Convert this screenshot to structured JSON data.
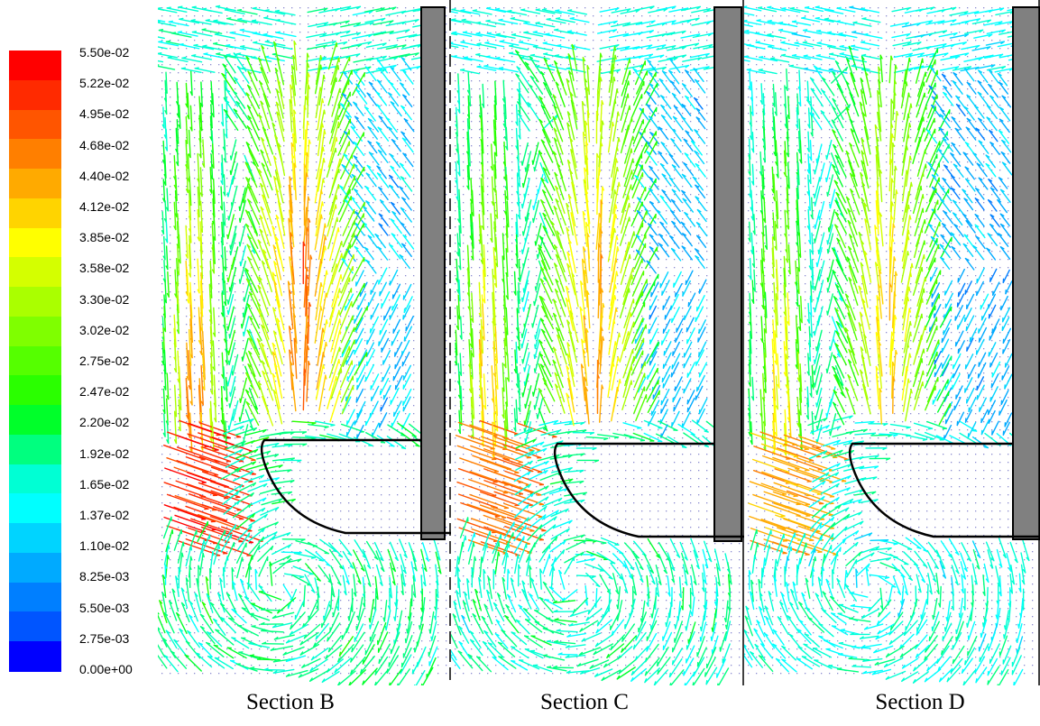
{
  "colorbar": {
    "labels": [
      "5.50e-02",
      "5.22e-02",
      "4.95e-02",
      "4.68e-02",
      "4.40e-02",
      "4.12e-02",
      "3.85e-02",
      "3.58e-02",
      "3.30e-02",
      "3.02e-02",
      "2.75e-02",
      "2.47e-02",
      "2.20e-02",
      "1.92e-02",
      "1.65e-02",
      "1.37e-02",
      "1.10e-02",
      "8.25e-03",
      "5.50e-03",
      "2.75e-03",
      "0.00e+00"
    ],
    "colors": [
      "#ff0000",
      "#ff2a00",
      "#ff5500",
      "#ff7f00",
      "#ffaa00",
      "#ffd400",
      "#ffff00",
      "#d4ff00",
      "#aaff00",
      "#7fff00",
      "#55ff00",
      "#2aff00",
      "#00ff2a",
      "#00ff7f",
      "#00ffd4",
      "#00ffff",
      "#00d4ff",
      "#00aaff",
      "#007fff",
      "#0055ff",
      "#0000ff"
    ]
  },
  "sections": [
    {
      "label": "Section B"
    },
    {
      "label": "Section C"
    },
    {
      "label": "Section D"
    }
  ]
}
